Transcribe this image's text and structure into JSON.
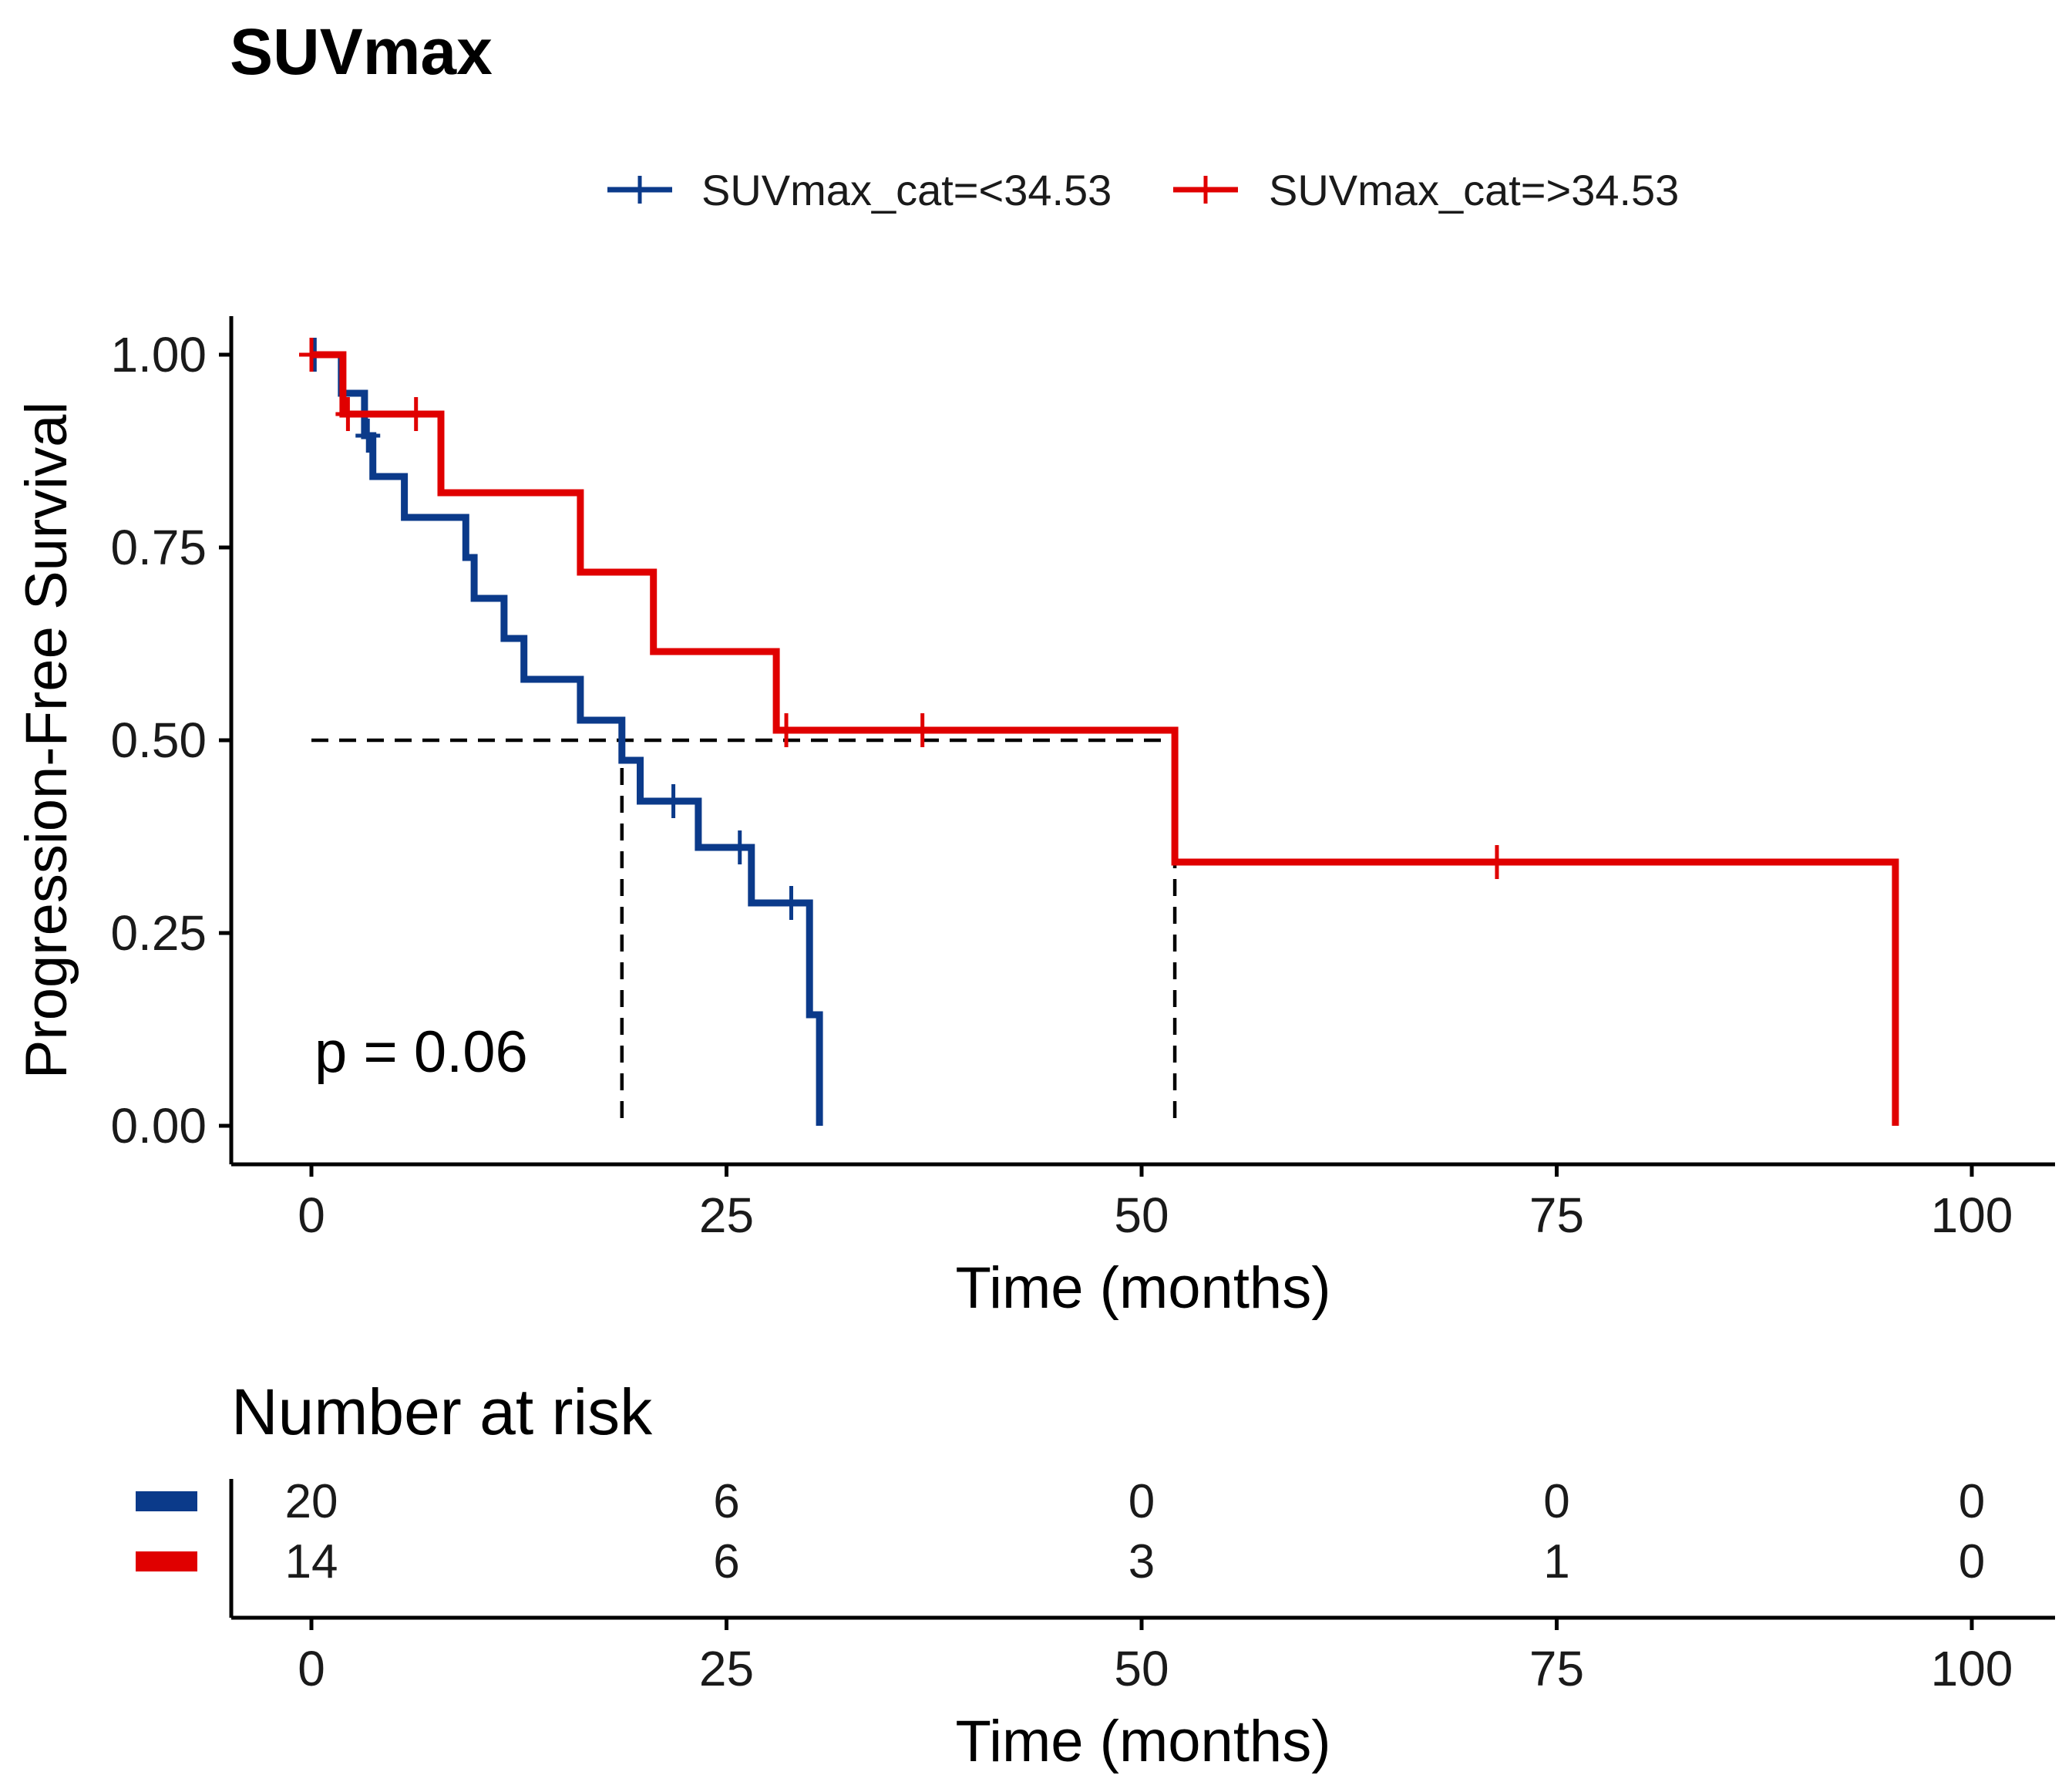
{
  "chart_data": {
    "type": "line",
    "subtype": "kaplan-meier",
    "title": "SUVmax",
    "xlabel": "Time (months)",
    "ylabel": "Progression-Free Survival",
    "xlim": [
      0,
      100
    ],
    "ylim": [
      0,
      1
    ],
    "x_ticks": [
      "0",
      "25",
      "50",
      "75",
      "100"
    ],
    "y_ticks": [
      "0.00",
      "0.25",
      "0.50",
      "0.75",
      "1.00"
    ],
    "x_tick_values": [
      0,
      25,
      50,
      75,
      100
    ],
    "y_tick_values": [
      0,
      0.25,
      0.5,
      0.75,
      1.0
    ],
    "annotation": "p = 0.06",
    "median_line": {
      "y": 0.5,
      "x_from": 0,
      "medians": [
        18.7,
        52
      ]
    },
    "series": [
      {
        "name": "SUVmax_cat=<34.53",
        "color": "#0b3a8a",
        "steps": [
          [
            0,
            1.0
          ],
          [
            1.8,
            1.0
          ],
          [
            1.8,
            0.95
          ],
          [
            3.2,
            0.95
          ],
          [
            3.2,
            0.895
          ],
          [
            3.7,
            0.895
          ],
          [
            3.7,
            0.842
          ],
          [
            5.6,
            0.842
          ],
          [
            5.6,
            0.789
          ],
          [
            9.3,
            0.789
          ],
          [
            9.3,
            0.737
          ],
          [
            9.8,
            0.737
          ],
          [
            9.8,
            0.684
          ],
          [
            11.6,
            0.684
          ],
          [
            11.6,
            0.632
          ],
          [
            12.8,
            0.632
          ],
          [
            12.8,
            0.579
          ],
          [
            16.2,
            0.579
          ],
          [
            16.2,
            0.526
          ],
          [
            18.7,
            0.526
          ],
          [
            18.7,
            0.474
          ],
          [
            19.8,
            0.474
          ],
          [
            19.8,
            0.421
          ],
          [
            23.3,
            0.421
          ],
          [
            23.3,
            0.361
          ],
          [
            26.5,
            0.361
          ],
          [
            26.5,
            0.289
          ],
          [
            30.0,
            0.289
          ],
          [
            30.0,
            0.144
          ],
          [
            30.6,
            0.144
          ],
          [
            30.6,
            0.0
          ]
        ],
        "censors": [
          [
            0.2,
            1.0
          ],
          [
            3.4,
            0.895
          ],
          [
            21.8,
            0.421
          ],
          [
            25.8,
            0.361
          ],
          [
            28.9,
            0.289
          ]
        ]
      },
      {
        "name": "SUVmax_cat=>34.53",
        "color": "#e00000",
        "steps": [
          [
            0,
            1.0
          ],
          [
            1.9,
            1.0
          ],
          [
            1.9,
            0.923
          ],
          [
            7.8,
            0.923
          ],
          [
            7.8,
            0.821
          ],
          [
            16.2,
            0.821
          ],
          [
            16.2,
            0.718
          ],
          [
            20.6,
            0.718
          ],
          [
            20.6,
            0.615
          ],
          [
            28.0,
            0.615
          ],
          [
            28.0,
            0.513
          ],
          [
            52.0,
            0.513
          ],
          [
            52.0,
            0.342
          ],
          [
            95.4,
            0.342
          ],
          [
            95.4,
            0.0
          ]
        ],
        "censors": [
          [
            0.0,
            1.0
          ],
          [
            2.2,
            0.923
          ],
          [
            6.3,
            0.923
          ],
          [
            28.6,
            0.513
          ],
          [
            36.8,
            0.513
          ],
          [
            71.4,
            0.342
          ]
        ]
      }
    ],
    "risk_table": {
      "title": "Number at risk",
      "xlabel": "Time (months)",
      "x_ticks": [
        "0",
        "25",
        "50",
        "75",
        "100"
      ],
      "rows": [
        {
          "color": "#0b3a8a",
          "values": [
            "20",
            "6",
            "0",
            "0",
            "0"
          ]
        },
        {
          "color": "#e00000",
          "values": [
            "14",
            "6",
            "3",
            "1",
            "0"
          ]
        }
      ]
    }
  }
}
